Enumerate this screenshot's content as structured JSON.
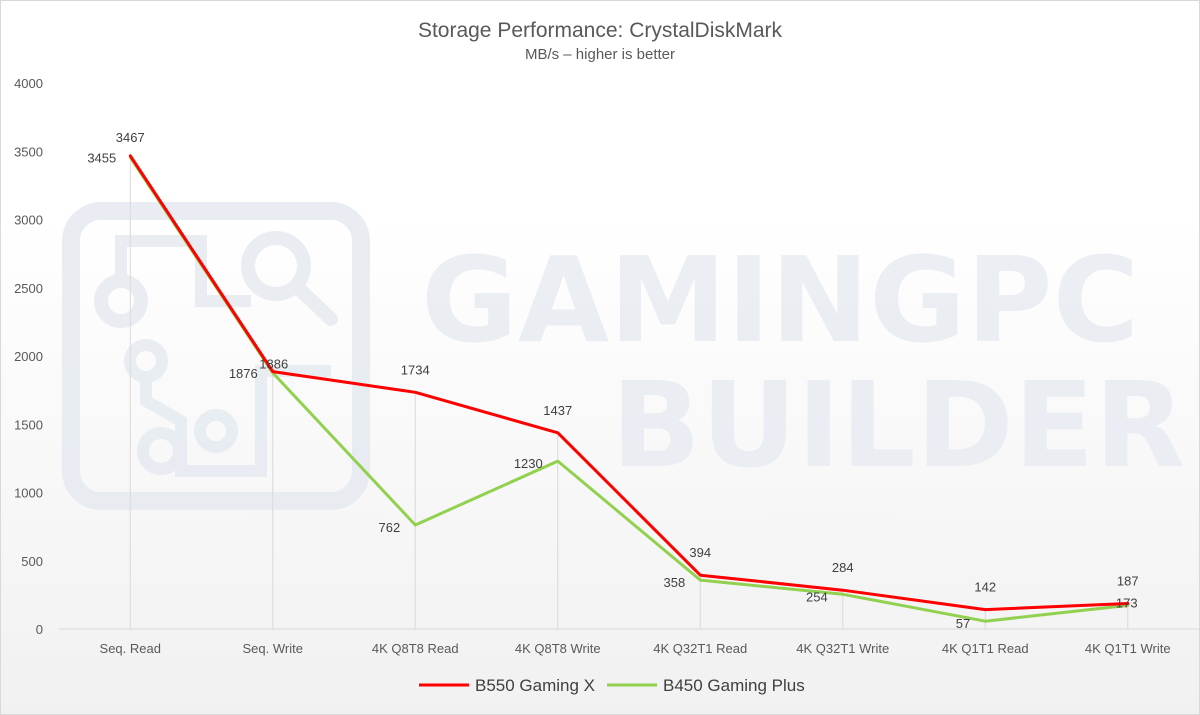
{
  "chart_data": {
    "type": "line",
    "title": "Storage Performance: CrystalDiskMark",
    "subtitle": "MB/s – higher is better",
    "categories": [
      "Seq. Read",
      "Seq. Write",
      "4K Q8T8 Read",
      "4K Q8T8 Write",
      "4K Q32T1 Read",
      "4K Q32T1 Write",
      "4K Q1T1 Read",
      "4K Q1T1 Write"
    ],
    "y_ticks": [
      "0",
      "500",
      "1000",
      "1500",
      "2000",
      "2500",
      "3000",
      "3500",
      "4000"
    ],
    "ylim": [
      0,
      4000
    ],
    "grid": "vertical-category-lines",
    "legend_position": "bottom",
    "series": [
      {
        "name": "B550 Gaming X",
        "color": "#ff0000",
        "values": [
          3467,
          1886,
          1734,
          1437,
          394,
          284,
          142,
          187
        ],
        "labels": [
          "3467",
          "1886",
          "1734",
          "1437",
          "394",
          "284",
          "142",
          "187"
        ]
      },
      {
        "name": "B450 Gaming Plus",
        "color": "#92d050",
        "values": [
          3455,
          1876,
          762,
          1230,
          358,
          254,
          57,
          173
        ],
        "labels": [
          "3455",
          "1876",
          "762",
          "1230",
          "358",
          "254",
          "57",
          "173"
        ]
      }
    ]
  },
  "watermark": {
    "line1": "GAMINGPC",
    "line2": "BUILDER",
    "icon": "circuit-magnifier-logo"
  }
}
